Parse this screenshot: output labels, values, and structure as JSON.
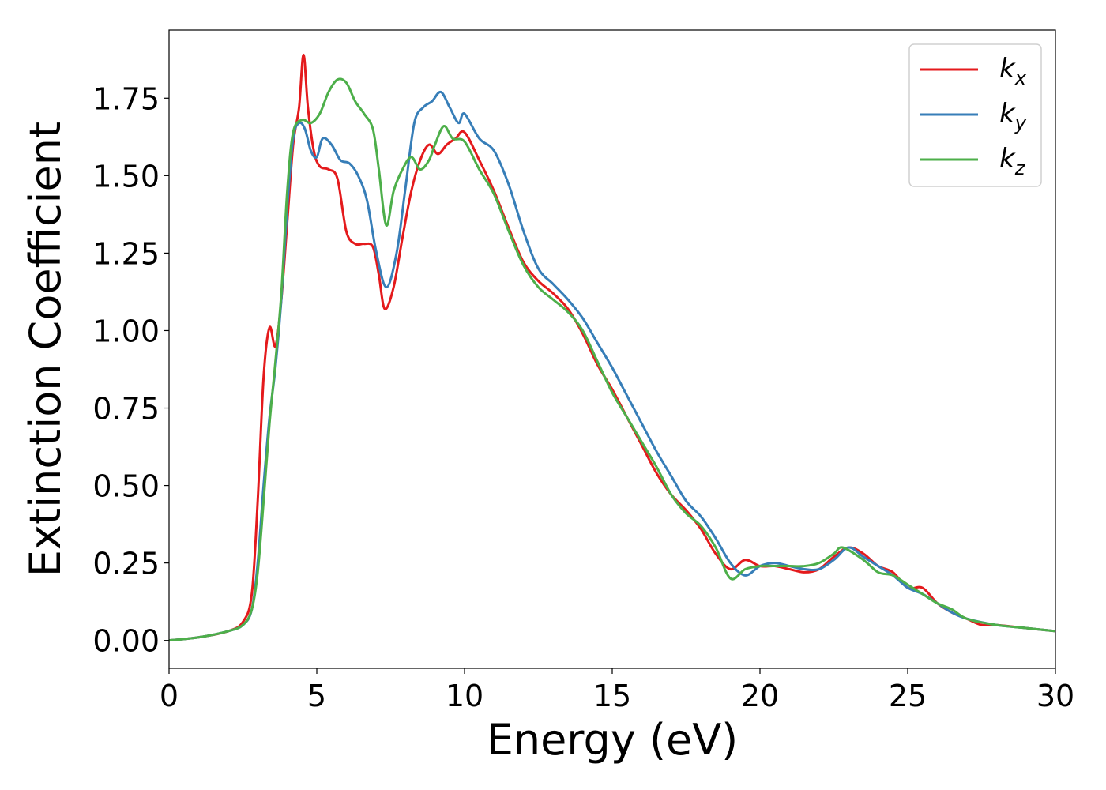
{
  "chart_data": {
    "type": "line",
    "title": "",
    "xlabel": "Energy (eV)",
    "ylabel": "Extinction Coefficient",
    "xlim": [
      0,
      30
    ],
    "ylim": [
      -0.09,
      1.97
    ],
    "xticks": [
      0,
      5,
      10,
      15,
      20,
      25,
      30
    ],
    "xtick_labels": [
      "0",
      "5",
      "10",
      "15",
      "20",
      "25",
      "30"
    ],
    "yticks": [
      0.0,
      0.25,
      0.5,
      0.75,
      1.0,
      1.25,
      1.5,
      1.75
    ],
    "ytick_labels": [
      "0.00",
      "0.25",
      "0.50",
      "0.75",
      "1.00",
      "1.25",
      "1.50",
      "1.75"
    ],
    "grid": false,
    "legend_position": "top-right",
    "series": [
      {
        "name": "k",
        "subscript": "x",
        "color": "#e41a1c",
        "x": [
          0,
          1,
          2,
          2.5,
          2.8,
          3.0,
          3.2,
          3.4,
          3.6,
          3.8,
          4.0,
          4.2,
          4.4,
          4.55,
          4.7,
          4.9,
          5.1,
          5.4,
          5.7,
          6.0,
          6.3,
          6.6,
          6.9,
          7.1,
          7.3,
          7.6,
          7.9,
          8.2,
          8.5,
          8.8,
          9.1,
          9.4,
          9.7,
          10.0,
          10.5,
          11.0,
          11.5,
          12.0,
          12.5,
          13.0,
          13.5,
          14.0,
          14.5,
          15.0,
          15.5,
          16.0,
          16.5,
          17.0,
          17.5,
          18.0,
          18.5,
          19.0,
          19.5,
          20.0,
          20.5,
          21.0,
          21.5,
          22.0,
          22.5,
          23.0,
          23.5,
          24.0,
          24.5,
          25.0,
          25.5,
          26.0,
          26.5,
          27.0,
          27.5,
          28.0,
          29.0,
          30.0
        ],
        "y": [
          0.0,
          0.01,
          0.03,
          0.06,
          0.15,
          0.45,
          0.85,
          1.01,
          0.95,
          1.1,
          1.35,
          1.6,
          1.72,
          1.89,
          1.72,
          1.58,
          1.53,
          1.52,
          1.49,
          1.32,
          1.28,
          1.28,
          1.27,
          1.18,
          1.07,
          1.14,
          1.3,
          1.45,
          1.55,
          1.6,
          1.57,
          1.6,
          1.62,
          1.64,
          1.55,
          1.45,
          1.33,
          1.22,
          1.16,
          1.12,
          1.07,
          0.99,
          0.89,
          0.81,
          0.72,
          0.63,
          0.54,
          0.47,
          0.42,
          0.36,
          0.28,
          0.23,
          0.26,
          0.24,
          0.24,
          0.23,
          0.22,
          0.23,
          0.27,
          0.3,
          0.28,
          0.24,
          0.22,
          0.17,
          0.17,
          0.12,
          0.09,
          0.07,
          0.05,
          0.05,
          0.04,
          0.03
        ]
      },
      {
        "name": "k",
        "subscript": "y",
        "color": "#377eb8",
        "x": [
          0,
          1,
          2,
          2.5,
          2.8,
          3.0,
          3.2,
          3.4,
          3.6,
          3.8,
          4.0,
          4.2,
          4.4,
          4.6,
          4.8,
          5.0,
          5.2,
          5.5,
          5.8,
          6.1,
          6.4,
          6.7,
          7.0,
          7.35,
          7.7,
          8.0,
          8.3,
          8.6,
          8.9,
          9.2,
          9.5,
          9.8,
          10.0,
          10.5,
          11.0,
          11.5,
          12.0,
          12.5,
          13.0,
          13.5,
          14.0,
          14.5,
          15.0,
          15.5,
          16.0,
          16.5,
          17.0,
          17.5,
          18.0,
          18.5,
          19.0,
          19.5,
          20.0,
          20.5,
          21.0,
          21.5,
          22.0,
          22.5,
          23.0,
          23.5,
          24.0,
          24.5,
          25.0,
          25.5,
          26.0,
          26.5,
          27.0,
          28.0,
          29.0,
          30.0
        ],
        "y": [
          0.0,
          0.01,
          0.03,
          0.05,
          0.1,
          0.25,
          0.5,
          0.72,
          0.88,
          1.1,
          1.4,
          1.62,
          1.67,
          1.65,
          1.58,
          1.56,
          1.62,
          1.6,
          1.55,
          1.54,
          1.5,
          1.42,
          1.26,
          1.14,
          1.25,
          1.46,
          1.67,
          1.72,
          1.74,
          1.77,
          1.72,
          1.67,
          1.7,
          1.62,
          1.58,
          1.47,
          1.32,
          1.2,
          1.15,
          1.1,
          1.04,
          0.96,
          0.88,
          0.79,
          0.7,
          0.61,
          0.53,
          0.45,
          0.4,
          0.33,
          0.25,
          0.21,
          0.24,
          0.25,
          0.24,
          0.23,
          0.23,
          0.26,
          0.3,
          0.27,
          0.24,
          0.21,
          0.17,
          0.15,
          0.12,
          0.09,
          0.07,
          0.05,
          0.04,
          0.03
        ]
      },
      {
        "name": "k",
        "subscript": "z",
        "color": "#4daf4a",
        "x": [
          0,
          1,
          2,
          2.5,
          2.8,
          3.0,
          3.2,
          3.4,
          3.6,
          3.8,
          4.0,
          4.2,
          4.5,
          4.8,
          5.1,
          5.4,
          5.7,
          6.0,
          6.3,
          6.6,
          6.9,
          7.1,
          7.35,
          7.6,
          7.9,
          8.2,
          8.5,
          8.8,
          9.0,
          9.3,
          9.6,
          10.0,
          10.5,
          11.0,
          11.5,
          12.0,
          12.5,
          13.0,
          13.5,
          14.0,
          14.5,
          15.0,
          15.5,
          16.0,
          16.5,
          17.0,
          17.5,
          18.0,
          18.5,
          19.0,
          19.5,
          20.0,
          20.5,
          21.0,
          21.5,
          22.0,
          22.5,
          22.8,
          23.5,
          24.0,
          24.5,
          25.0,
          25.5,
          26.0,
          26.5,
          27.0,
          28.0,
          29.0,
          30.0
        ],
        "y": [
          0.0,
          0.01,
          0.03,
          0.05,
          0.1,
          0.22,
          0.45,
          0.7,
          0.9,
          1.12,
          1.45,
          1.64,
          1.68,
          1.67,
          1.7,
          1.77,
          1.81,
          1.8,
          1.74,
          1.7,
          1.65,
          1.52,
          1.34,
          1.45,
          1.52,
          1.56,
          1.52,
          1.55,
          1.6,
          1.66,
          1.62,
          1.61,
          1.52,
          1.44,
          1.32,
          1.21,
          1.14,
          1.1,
          1.06,
          1.0,
          0.9,
          0.8,
          0.72,
          0.64,
          0.56,
          0.47,
          0.41,
          0.37,
          0.3,
          0.2,
          0.23,
          0.24,
          0.24,
          0.24,
          0.24,
          0.25,
          0.28,
          0.3,
          0.26,
          0.22,
          0.21,
          0.18,
          0.15,
          0.12,
          0.1,
          0.07,
          0.05,
          0.04,
          0.03
        ]
      }
    ]
  }
}
